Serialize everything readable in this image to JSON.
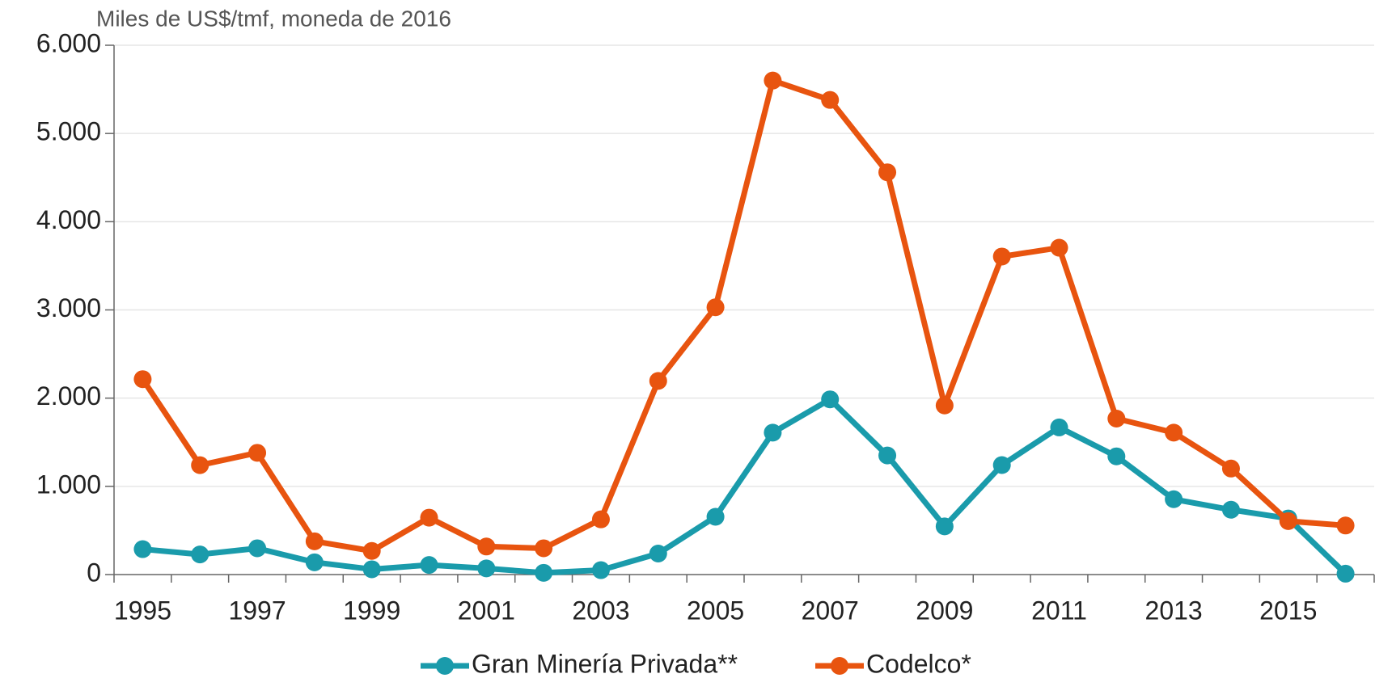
{
  "chart_data": {
    "type": "line",
    "y_label": "Miles de US$/tmf, moneda de 2016",
    "categories": [
      "1995",
      null,
      "1997",
      null,
      "1999",
      null,
      "2001",
      null,
      "2003",
      null,
      "2005",
      null,
      "2007",
      null,
      "2009",
      null,
      "2011",
      null,
      "2013",
      null,
      "2015",
      null
    ],
    "series": [
      {
        "name": "Gran Minería Privada**",
        "color": "#1a9bab",
        "values": [
          288,
          228,
          298,
          139,
          60,
          109,
          70,
          20,
          50,
          238,
          655,
          1609,
          1986,
          1350,
          546,
          1241,
          1668,
          1340,
          854,
          735,
          636,
          10
        ]
      },
      {
        "name": "Codelco*",
        "color": "#e8540f",
        "values": [
          2215,
          1240,
          1380,
          377,
          268,
          645,
          318,
          298,
          626,
          2195,
          3030,
          5600,
          5380,
          4560,
          1917,
          3605,
          3705,
          1768,
          1609,
          1202,
          606,
          556
        ]
      }
    ],
    "ylim": [
      0,
      6000
    ],
    "yticks": [
      0,
      {
        "value": 1000,
        "label": "1.000"
      },
      {
        "value": 2000,
        "label": "2.000"
      },
      {
        "value": 3000,
        "label": "3.000"
      },
      {
        "value": 4000,
        "label": "4.000"
      },
      {
        "value": 5000,
        "label": "5.000"
      },
      {
        "value": 6000,
        "label": "6.000"
      }
    ],
    "grid": true,
    "legend": "bottom"
  }
}
